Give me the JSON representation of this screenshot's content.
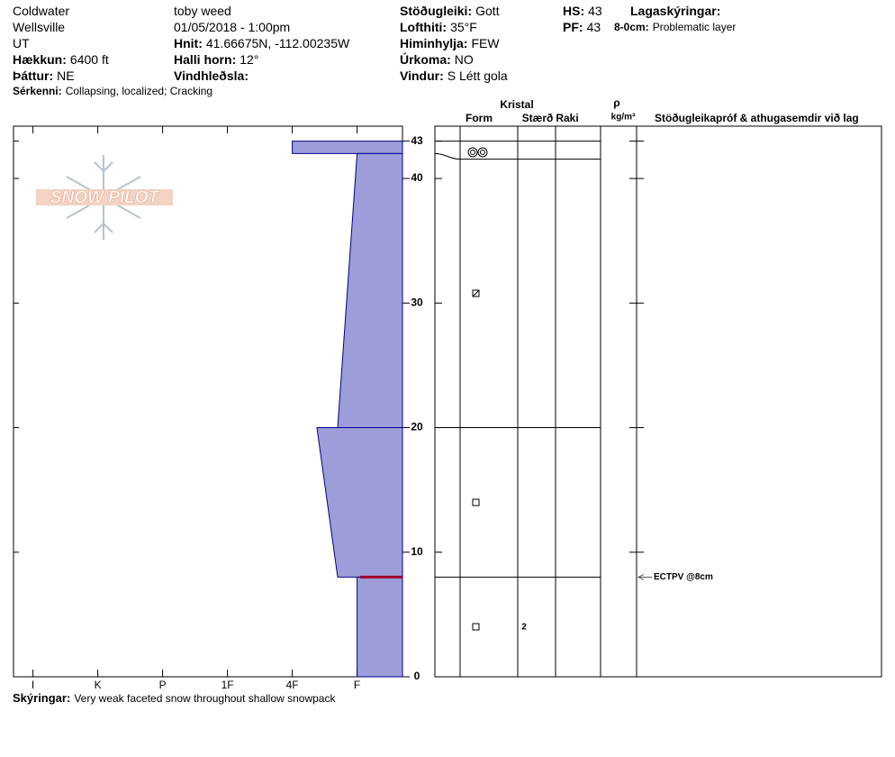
{
  "header": {
    "col1": [
      {
        "value": "Coldwater"
      },
      {
        "value": "Wellsville"
      },
      {
        "value": "UT"
      },
      {
        "label": "Hækkun:",
        "value": "6400 ft"
      },
      {
        "label": "Þáttur:",
        "value": "NE"
      }
    ],
    "features": {
      "label": "Sérkenni:",
      "value": "Collapsing, localized; Cracking"
    },
    "col2": [
      {
        "value": "toby weed"
      },
      {
        "value": "01/05/2018 - 1:00pm"
      },
      {
        "label": "Hnit:",
        "value": "41.66675N, -112.00235W"
      },
      {
        "label": "Halli horn:",
        "value": "12°"
      },
      {
        "label": "Vindhleðsla:"
      }
    ],
    "col3": [
      {
        "label": "Stöðugleiki:",
        "value": "Gott"
      },
      {
        "label": "Lofthiti:",
        "value": "35°F"
      },
      {
        "label": "Himinhylja:",
        "value": "FEW"
      },
      {
        "label": "Úrkoma:",
        "value": "NO"
      },
      {
        "label": "Vindur:",
        "value": "S Létt gola"
      }
    ],
    "col4": [
      {
        "label": "HS:",
        "value": "43"
      },
      {
        "label": "PF:",
        "value": "43"
      }
    ],
    "layer_notes_title": "Lagaskýringar:",
    "layer_notes": [
      {
        "label": "8-0cm:",
        "value": "Problematic layer"
      }
    ]
  },
  "logo": "SNOW PILOT",
  "table_header": {
    "crystal": "Kristal",
    "form": "Form",
    "size": "Stærð",
    "moisture": "Raki",
    "density": "ρ",
    "density_unit": "kg/m³",
    "comments": "Stöðugleikapróf & athugasemdir við lag"
  },
  "chart_data": {
    "type": "snow-profile",
    "xlim": [
      6.3,
      0.3
    ],
    "xticks": [
      {
        "value": 6,
        "label": "I"
      },
      {
        "value": 5,
        "label": "K"
      },
      {
        "value": 4,
        "label": "P"
      },
      {
        "value": 3,
        "label": "1F"
      },
      {
        "value": 2,
        "label": "4F"
      },
      {
        "value": 1,
        "label": "F"
      }
    ],
    "ylim": [
      0,
      44.2
    ],
    "yticks": [
      0,
      10,
      20,
      30,
      40,
      43
    ],
    "color": "#9d9dd9",
    "layers": [
      {
        "top": 43,
        "bottom": 42,
        "hardness_top": 2,
        "hardness_bottom": 2
      },
      {
        "top": 42,
        "bottom": 20,
        "hardness_top": 1,
        "hardness_bottom": 1.3
      },
      {
        "top": 20,
        "bottom": 8,
        "hardness_top": 1.62,
        "hardness_bottom": 1.3
      },
      {
        "top": 8,
        "bottom": 0,
        "hardness_top": 1,
        "hardness_bottom": 1,
        "grain_size": 2
      }
    ],
    "problem_layer": 8,
    "stability_tests": [
      {
        "depth": 8,
        "label": "ECTPV @8cm"
      }
    ]
  },
  "footer": {
    "label": "Skýringar:",
    "value": "Very weak faceted snow throughout shallow snowpack"
  }
}
